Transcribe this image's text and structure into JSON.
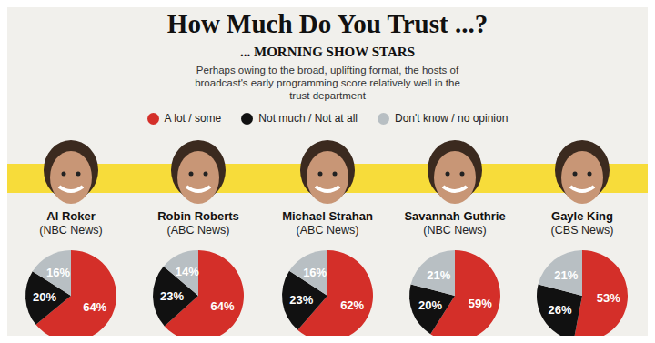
{
  "title": "How Much Do You Trust ...?",
  "subtitle": "... MORNING SHOW STARS",
  "text": "Perhaps owing to the broad, uplifting format, the hosts of broadcast's early programming score relatively well in the trust department",
  "legend": "top",
  "chart_data": [
    {
      "type": "pie",
      "title": "Al Roker",
      "subtitle": "(NBC News)",
      "categories": [
        "A lot / some",
        "Not much / Not at all",
        "Don't know / no opinion"
      ],
      "values": [
        64,
        20,
        16
      ],
      "value_labels": [
        "64%",
        "20%",
        "16%"
      ],
      "colors": [
        "#d42f29",
        "#111111",
        "#b8bfc3"
      ],
      "data_labels": true
    },
    {
      "type": "pie",
      "title": "Robin Roberts",
      "subtitle": "(ABC News)",
      "categories": [
        "A lot / some",
        "Not much / Not at all",
        "Don't know / no opinion"
      ],
      "values": [
        64,
        23,
        14
      ],
      "value_labels": [
        "64%",
        "23%",
        "14%"
      ],
      "colors": [
        "#d42f29",
        "#111111",
        "#b8bfc3"
      ],
      "data_labels": true
    },
    {
      "type": "pie",
      "title": "Michael Strahan",
      "subtitle": "(ABC News)",
      "categories": [
        "A lot / some",
        "Not much / Not at all",
        "Don't know / no opinion"
      ],
      "values": [
        62,
        23,
        16
      ],
      "value_labels": [
        "62%",
        "23%",
        "16%"
      ],
      "colors": [
        "#d42f29",
        "#111111",
        "#b8bfc3"
      ],
      "data_labels": true
    },
    {
      "type": "pie",
      "title": "Savannah Guthrie",
      "subtitle": "(NBC News)",
      "categories": [
        "A lot / some",
        "Not much / Not at all",
        "Don't know / no opinion"
      ],
      "values": [
        59,
        20,
        21
      ],
      "value_labels": [
        "59%",
        "20%",
        "21%"
      ],
      "colors": [
        "#d42f29",
        "#111111",
        "#b8bfc3"
      ],
      "data_labels": true
    },
    {
      "type": "pie",
      "title": "Gayle King",
      "subtitle": "(CBS News)",
      "categories": [
        "A lot / some",
        "Not much / Not at all",
        "Don't know / no opinion"
      ],
      "values": [
        53,
        26,
        21
      ],
      "value_labels": [
        "53%",
        "26%",
        "21%"
      ],
      "colors": [
        "#d42f29",
        "#111111",
        "#b8bfc3"
      ],
      "data_labels": true
    }
  ]
}
